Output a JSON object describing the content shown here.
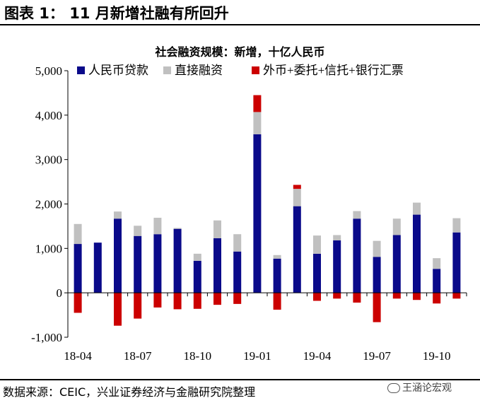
{
  "figure_title": "图表 1： 11 月新增社融有所回升",
  "source": "数据来源：CEIC，兴业证券经济与金融研究院整理",
  "watermark": "王涵论宏观",
  "colors": {
    "rmb_loans": "#0a0a8a",
    "direct": "#c0c0c0",
    "other": "#cc0000"
  },
  "chart_data": {
    "type": "bar",
    "stacked": true,
    "title": "社会融资规模：新增，十亿人民币",
    "xlabel": "",
    "ylabel": "",
    "ylim": [
      -1000,
      5000
    ],
    "yticks": [
      -1000,
      0,
      1000,
      2000,
      3000,
      4000,
      5000
    ],
    "ytick_labels": [
      "-1,000",
      "0",
      "1,000",
      "2,000",
      "3,000",
      "4,000",
      "5,000"
    ],
    "legend_position": "top",
    "categories": [
      "18-04",
      "18-05",
      "18-06",
      "18-07",
      "18-08",
      "18-09",
      "18-10",
      "18-11",
      "18-12",
      "19-01",
      "19-02",
      "19-03",
      "19-04",
      "19-05",
      "19-06",
      "19-07",
      "19-08",
      "19-09",
      "19-10",
      "19-11"
    ],
    "xtick_labels": [
      {
        "index": 0,
        "label": "18-04"
      },
      {
        "index": 3,
        "label": "18-07"
      },
      {
        "index": 6,
        "label": "18-10"
      },
      {
        "index": 9,
        "label": "19-01"
      },
      {
        "index": 12,
        "label": "19-04"
      },
      {
        "index": 15,
        "label": "19-07"
      },
      {
        "index": 18,
        "label": "19-10"
      }
    ],
    "series": [
      {
        "name": "人民币贷款",
        "key": "rmb_loans",
        "values": [
          1100,
          1130,
          1670,
          1280,
          1320,
          1440,
          720,
          1230,
          930,
          3570,
          770,
          1950,
          880,
          1180,
          1670,
          810,
          1300,
          1760,
          540,
          1360
        ]
      },
      {
        "name": "直接融资",
        "key": "direct",
        "values": [
          450,
          0,
          160,
          230,
          370,
          20,
          160,
          400,
          390,
          500,
          80,
          390,
          410,
          120,
          170,
          360,
          370,
          270,
          240,
          320
        ]
      },
      {
        "name": "外币+委托+信托+银行汇票",
        "key": "other",
        "values": [
          -450,
          0,
          -740,
          -580,
          -330,
          -370,
          -360,
          -270,
          -250,
          380,
          -380,
          90,
          -180,
          -130,
          -220,
          -660,
          -130,
          -160,
          -240,
          -130
        ]
      }
    ]
  }
}
